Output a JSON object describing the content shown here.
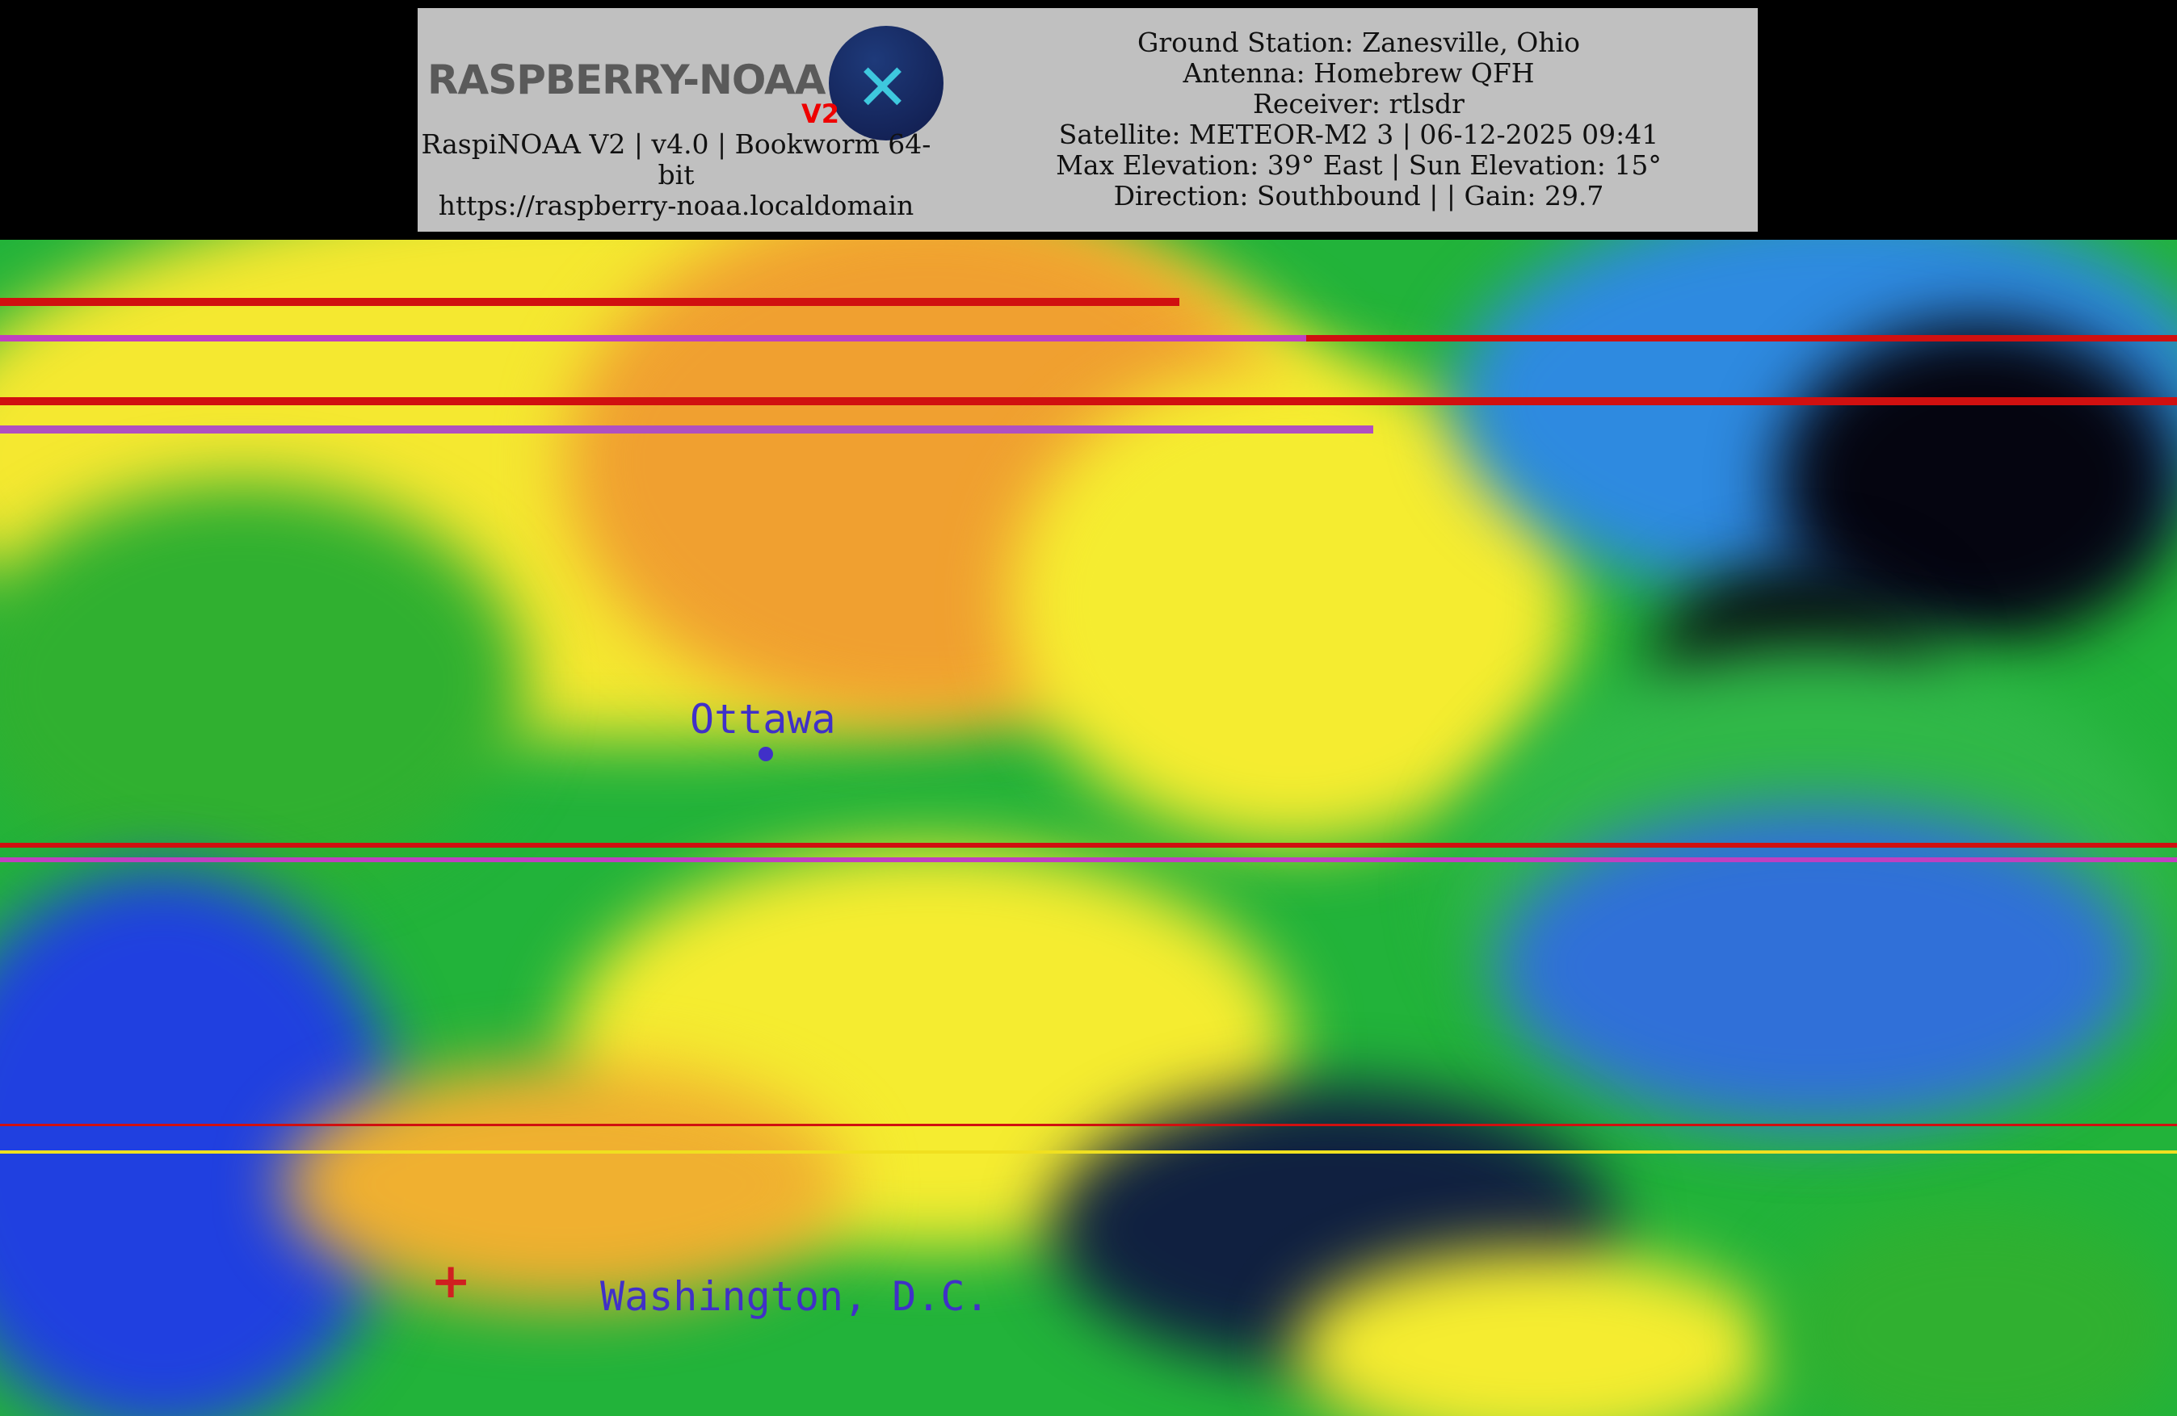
{
  "header": {
    "logo": {
      "text": "RASPBERRY-NOAA",
      "badge": "V2"
    },
    "left_lines": [
      "RaspiNOAA V2 | v4.0 | Bookworm 64-bit",
      "https://raspberry-noaa.localdomain"
    ],
    "right_lines": [
      "Ground Station: Zanesville, Ohio",
      "Antenna: Homebrew QFH",
      "Receiver: rtlsdr",
      "Satellite: METEOR-M2 3 | 06-12-2025 09:41",
      "Max Elevation: 39° East | Sun Elevation: 15°",
      "Direction: Southbound | | Gain: 29.7"
    ]
  },
  "map": {
    "labels": {
      "city1": "Ottawa",
      "city2": "Washington, D.C."
    },
    "palette": {
      "cold": "#f0a020",
      "mid": "#f5f020",
      "warm": "#20b030",
      "water": "#2040e0",
      "clear": "#000000",
      "noise_red": "#d01010",
      "noise_magenta": "#c040c0"
    }
  }
}
